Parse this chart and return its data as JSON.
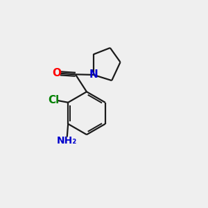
{
  "background_color": "#efefef",
  "bond_color": "#1a1a1a",
  "line_width": 1.6,
  "atom_colors": {
    "O": "#ff0000",
    "N": "#0000cc",
    "Cl": "#008000",
    "NH2": "#0000cc"
  },
  "font_size_atom": 11,
  "font_size_nh2": 10
}
